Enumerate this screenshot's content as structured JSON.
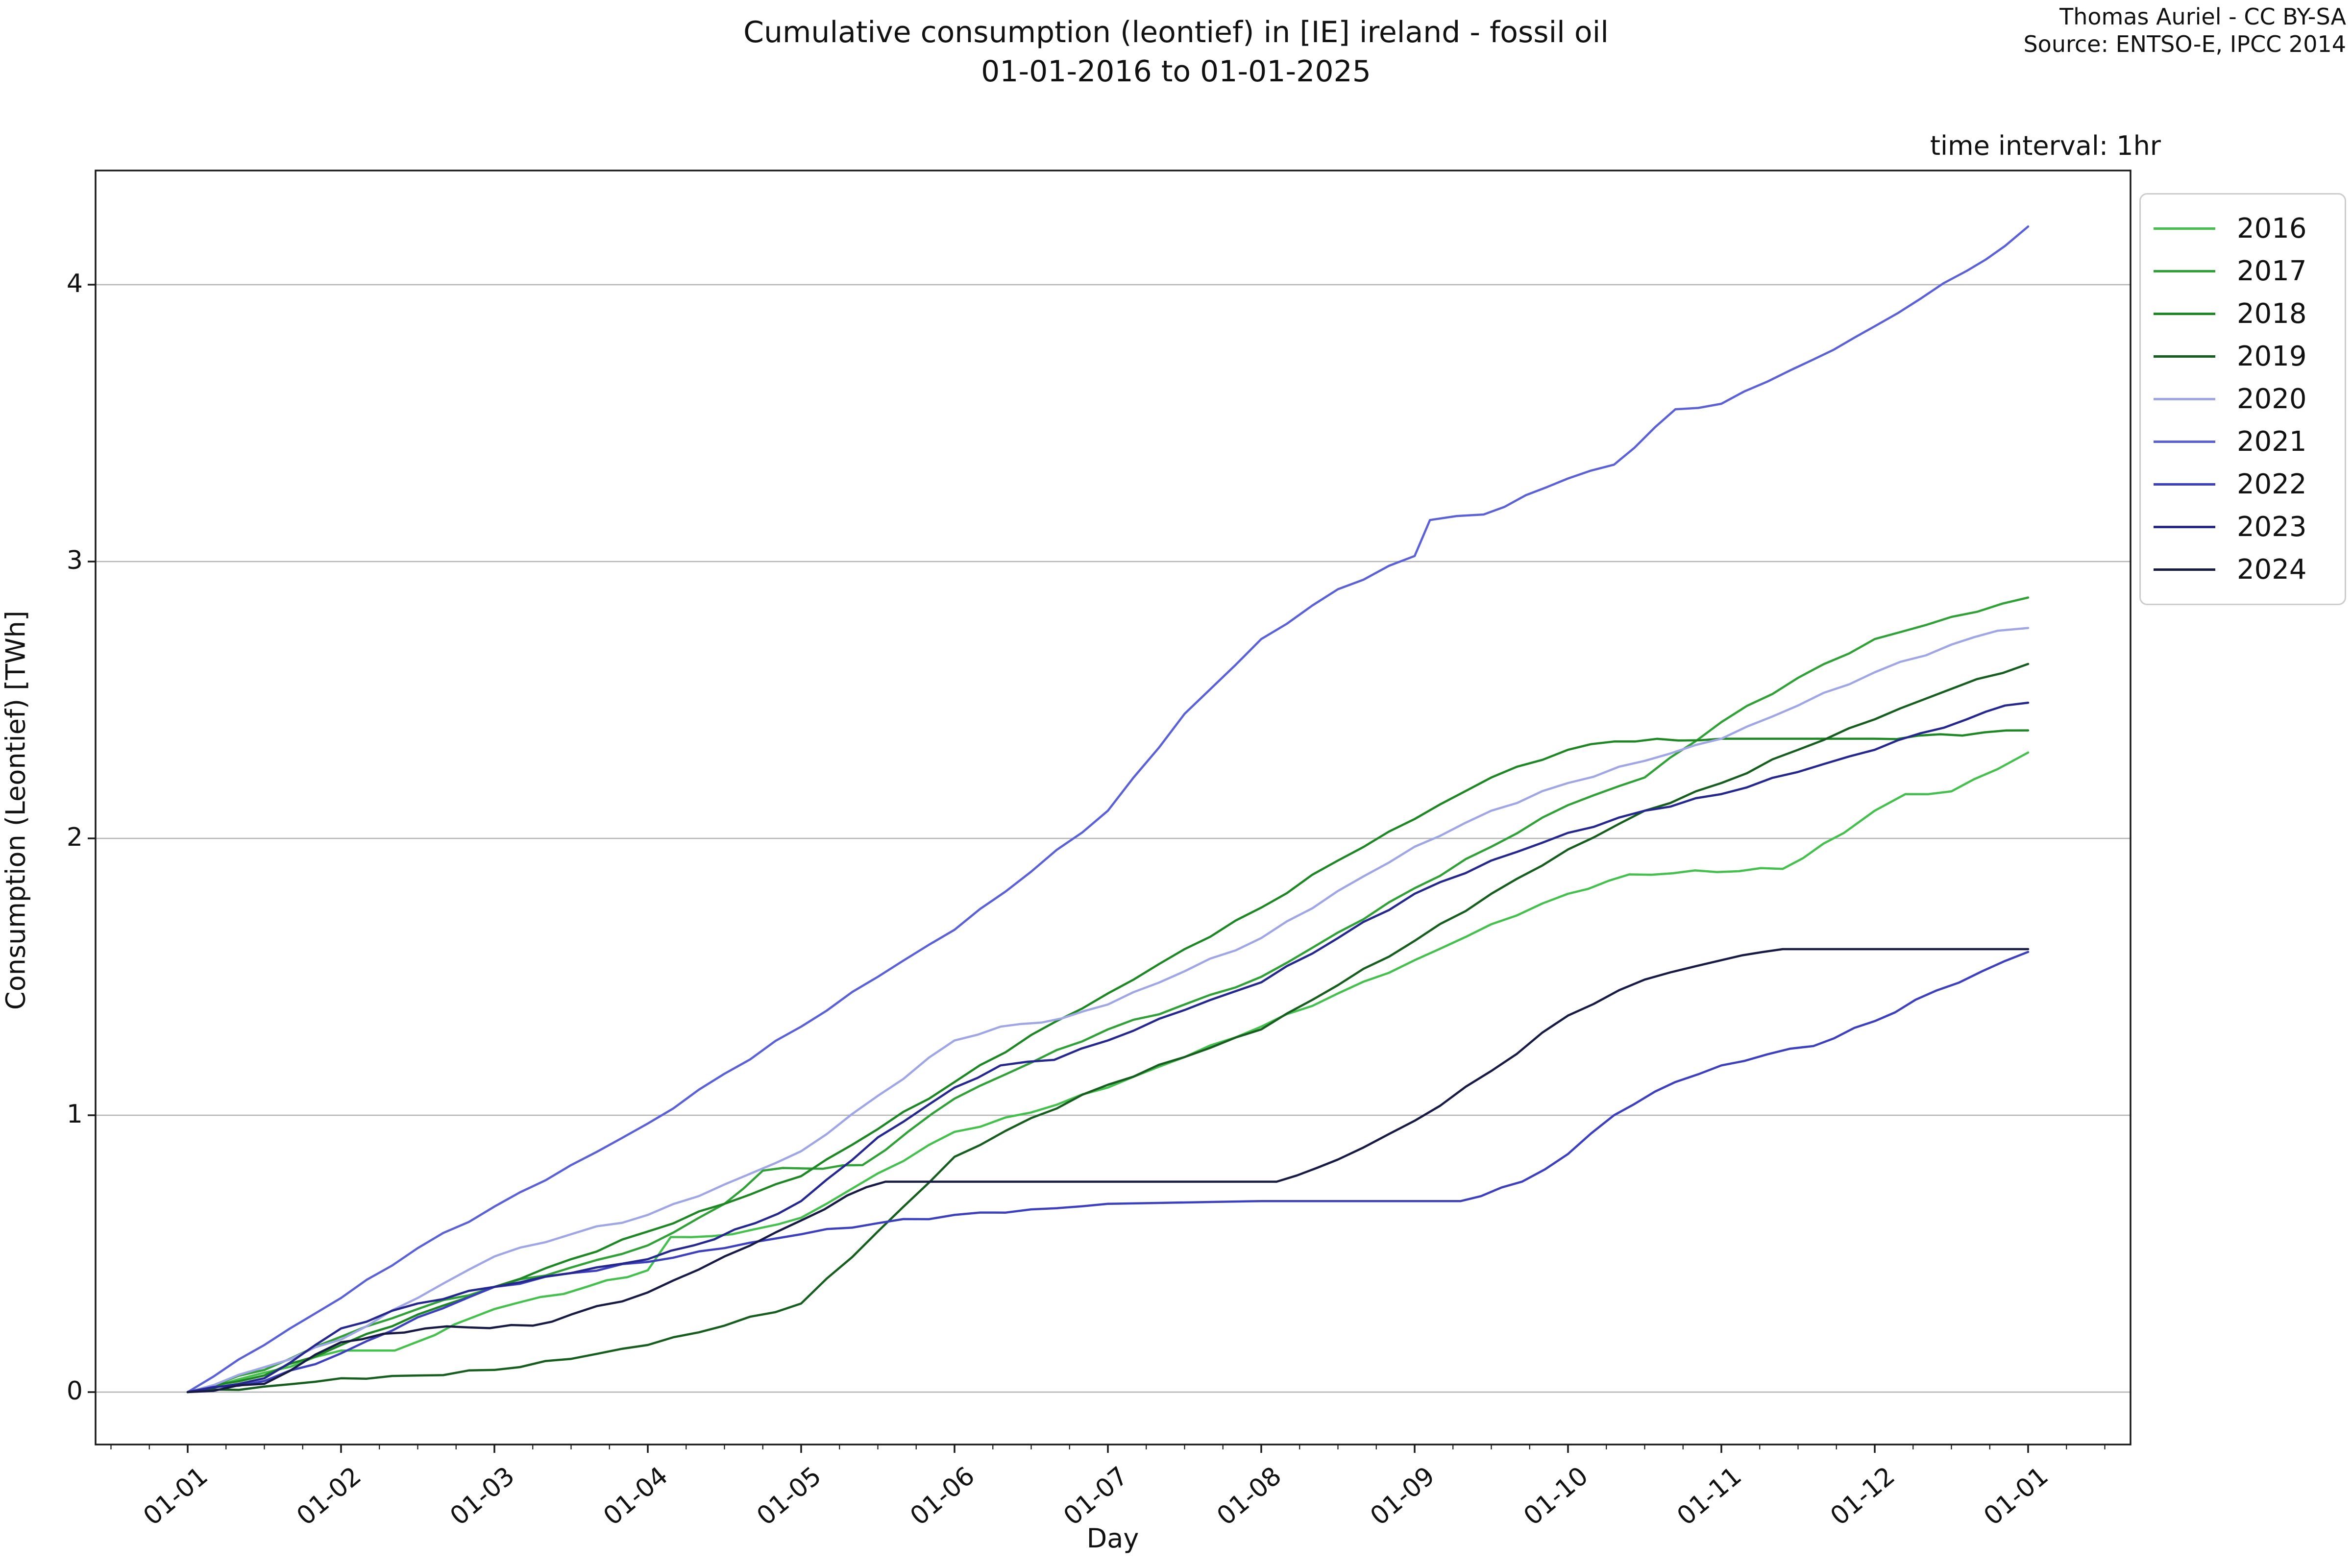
{
  "header": {
    "title_line1": "Cumulative consumption (leontief) in [IE] ireland - fossil oil",
    "title_line2": "01-01-2016 to 01-01-2025",
    "attribution_line1": "Thomas Auriel - CC BY-SA",
    "attribution_line2": "Source: ENTSO-E, IPCC 2014",
    "corner_note": "time interval: 1hr"
  },
  "chart_data": {
    "type": "line",
    "title": "Cumulative consumption (leontief) in [IE] ireland - fossil oil 01-01-2016 to 01-01-2025",
    "xlabel": "Day",
    "ylabel": "Consumption (Leontief) [TWh]",
    "x_tick_labels": [
      "01-01",
      "01-02",
      "01-03",
      "01-04",
      "01-05",
      "01-06",
      "01-07",
      "01-08",
      "01-09",
      "01-10",
      "01-11",
      "01-12",
      "01-01"
    ],
    "y_ticks": [
      0,
      1,
      2,
      3,
      4
    ],
    "xlim_months": [
      -0.6,
      12.67
    ],
    "ylim": [
      -0.19,
      4.44
    ],
    "grid": "horizontal gridlines at integer TWh",
    "legend_position": "outside upper right",
    "x_units": "month index from Jan 1 (0 = 01-01, 12 = next 01-01)",
    "series": [
      {
        "name": "2016",
        "color": "#44c04c",
        "points": [
          [
            0,
            0
          ],
          [
            0.5,
            0.07
          ],
          [
            1,
            0.15
          ],
          [
            1.35,
            0.15
          ],
          [
            2,
            0.3
          ],
          [
            2.6,
            0.38
          ],
          [
            3,
            0.44
          ],
          [
            3.15,
            0.56
          ],
          [
            3.55,
            0.57
          ],
          [
            4,
            0.63
          ],
          [
            4.5,
            0.79
          ],
          [
            5,
            0.94
          ],
          [
            5.5,
            1.01
          ],
          [
            6,
            1.1
          ],
          [
            6.5,
            1.21
          ],
          [
            7,
            1.32
          ],
          [
            7.5,
            1.44
          ],
          [
            8,
            1.56
          ],
          [
            8.5,
            1.69
          ],
          [
            9,
            1.8
          ],
          [
            9.4,
            1.87
          ],
          [
            10.4,
            1.89
          ],
          [
            10.8,
            2.02
          ],
          [
            11,
            2.1
          ],
          [
            11.2,
            2.16
          ],
          [
            11.5,
            2.17
          ],
          [
            11.8,
            2.25
          ],
          [
            12,
            2.31
          ]
        ]
      },
      {
        "name": "2017",
        "color": "#2fa136",
        "points": [
          [
            0,
            0
          ],
          [
            0.5,
            0.08
          ],
          [
            1,
            0.2
          ],
          [
            1.5,
            0.3
          ],
          [
            2,
            0.38
          ],
          [
            2.5,
            0.45
          ],
          [
            3,
            0.53
          ],
          [
            3.5,
            0.68
          ],
          [
            3.75,
            0.8
          ],
          [
            4.4,
            0.82
          ],
          [
            5,
            1.06
          ],
          [
            5.5,
            1.19
          ],
          [
            6,
            1.31
          ],
          [
            6.5,
            1.4
          ],
          [
            7,
            1.5
          ],
          [
            7.5,
            1.66
          ],
          [
            8,
            1.82
          ],
          [
            8.5,
            1.97
          ],
          [
            9,
            2.12
          ],
          [
            9.5,
            2.22
          ],
          [
            10,
            2.42
          ],
          [
            10.5,
            2.58
          ],
          [
            11,
            2.72
          ],
          [
            11.5,
            2.8
          ],
          [
            12,
            2.87
          ]
        ]
      },
      {
        "name": "2018",
        "color": "#1d8724",
        "points": [
          [
            0,
            0
          ],
          [
            0.5,
            0.06
          ],
          [
            1,
            0.17
          ],
          [
            1.5,
            0.28
          ],
          [
            2,
            0.38
          ],
          [
            2.5,
            0.48
          ],
          [
            3,
            0.58
          ],
          [
            3.5,
            0.68
          ],
          [
            4,
            0.78
          ],
          [
            4.5,
            0.95
          ],
          [
            5,
            1.12
          ],
          [
            5.5,
            1.29
          ],
          [
            6,
            1.44
          ],
          [
            6.5,
            1.6
          ],
          [
            7,
            1.75
          ],
          [
            7.5,
            1.92
          ],
          [
            8,
            2.07
          ],
          [
            8.5,
            2.22
          ],
          [
            9,
            2.32
          ],
          [
            9.3,
            2.35
          ],
          [
            10,
            2.36
          ],
          [
            11,
            2.36
          ],
          [
            12,
            2.39
          ]
        ]
      },
      {
        "name": "2019",
        "color": "#155e1d",
        "points": [
          [
            0,
            0
          ],
          [
            0.5,
            0.02
          ],
          [
            1,
            0.05
          ],
          [
            1.5,
            0.06
          ],
          [
            2,
            0.08
          ],
          [
            2.5,
            0.12
          ],
          [
            3,
            0.17
          ],
          [
            3.5,
            0.24
          ],
          [
            4,
            0.32
          ],
          [
            4.5,
            0.58
          ],
          [
            5,
            0.85
          ],
          [
            5.5,
            0.99
          ],
          [
            6,
            1.11
          ],
          [
            6.5,
            1.21
          ],
          [
            7,
            1.31
          ],
          [
            7.5,
            1.47
          ],
          [
            8,
            1.63
          ],
          [
            8.5,
            1.8
          ],
          [
            9,
            1.96
          ],
          [
            9.5,
            2.1
          ],
          [
            10,
            2.2
          ],
          [
            10.5,
            2.32
          ],
          [
            11,
            2.43
          ],
          [
            11.5,
            2.54
          ],
          [
            12,
            2.63
          ]
        ]
      },
      {
        "name": "2020",
        "color": "#9fa6e6",
        "points": [
          [
            0,
            0
          ],
          [
            0.5,
            0.09
          ],
          [
            1,
            0.19
          ],
          [
            1.5,
            0.34
          ],
          [
            2,
            0.49
          ],
          [
            2.5,
            0.57
          ],
          [
            3,
            0.64
          ],
          [
            3.5,
            0.75
          ],
          [
            4,
            0.87
          ],
          [
            4.5,
            1.07
          ],
          [
            5,
            1.27
          ],
          [
            5.3,
            1.32
          ],
          [
            5.7,
            1.35
          ],
          [
            6,
            1.4
          ],
          [
            6.5,
            1.52
          ],
          [
            7,
            1.64
          ],
          [
            7.5,
            1.81
          ],
          [
            8,
            1.97
          ],
          [
            8.5,
            2.1
          ],
          [
            9,
            2.2
          ],
          [
            9.5,
            2.28
          ],
          [
            10,
            2.36
          ],
          [
            10.5,
            2.48
          ],
          [
            11,
            2.6
          ],
          [
            11.5,
            2.7
          ],
          [
            11.8,
            2.75
          ],
          [
            12,
            2.76
          ]
        ]
      },
      {
        "name": "2021",
        "color": "#5a60d8",
        "points": [
          [
            0,
            0
          ],
          [
            0.5,
            0.17
          ],
          [
            1,
            0.34
          ],
          [
            1.5,
            0.52
          ],
          [
            2,
            0.67
          ],
          [
            2.5,
            0.82
          ],
          [
            3,
            0.97
          ],
          [
            3.5,
            1.15
          ],
          [
            4,
            1.32
          ],
          [
            4.5,
            1.5
          ],
          [
            5,
            1.67
          ],
          [
            5.5,
            1.88
          ],
          [
            6,
            2.1
          ],
          [
            6.5,
            2.45
          ],
          [
            7,
            2.72
          ],
          [
            7.5,
            2.9
          ],
          [
            8,
            3.02
          ],
          [
            8.1,
            3.15
          ],
          [
            8.45,
            3.17
          ],
          [
            9,
            3.3
          ],
          [
            9.3,
            3.35
          ],
          [
            9.7,
            3.55
          ],
          [
            10,
            3.57
          ],
          [
            10.3,
            3.65
          ],
          [
            10.6,
            3.73
          ],
          [
            11,
            3.85
          ],
          [
            11.3,
            3.95
          ],
          [
            11.6,
            4.05
          ],
          [
            11.85,
            4.14
          ],
          [
            12,
            4.21
          ]
        ]
      },
      {
        "name": "2022",
        "color": "#3b3fc0",
        "points": [
          [
            0,
            0
          ],
          [
            0.5,
            0.04
          ],
          [
            1,
            0.14
          ],
          [
            1.5,
            0.27
          ],
          [
            2,
            0.38
          ],
          [
            2.5,
            0.43
          ],
          [
            3,
            0.47
          ],
          [
            3.5,
            0.52
          ],
          [
            4,
            0.57
          ],
          [
            4.5,
            0.61
          ],
          [
            5,
            0.64
          ],
          [
            5.5,
            0.66
          ],
          [
            6,
            0.68
          ],
          [
            7,
            0.69
          ],
          [
            8.3,
            0.69
          ],
          [
            8.7,
            0.76
          ],
          [
            9,
            0.86
          ],
          [
            9.3,
            1.0
          ],
          [
            9.7,
            1.12
          ],
          [
            10,
            1.18
          ],
          [
            10.3,
            1.22
          ],
          [
            10.6,
            1.25
          ],
          [
            11,
            1.34
          ],
          [
            11.4,
            1.45
          ],
          [
            11.7,
            1.52
          ],
          [
            12,
            1.59
          ]
        ]
      },
      {
        "name": "2023",
        "color": "#24278f",
        "points": [
          [
            0,
            0
          ],
          [
            0.5,
            0.05
          ],
          [
            1,
            0.23
          ],
          [
            1.5,
            0.32
          ],
          [
            2,
            0.38
          ],
          [
            2.5,
            0.43
          ],
          [
            3,
            0.48
          ],
          [
            3.3,
            0.53
          ],
          [
            3.7,
            0.61
          ],
          [
            4,
            0.69
          ],
          [
            4.5,
            0.92
          ],
          [
            5,
            1.1
          ],
          [
            5.3,
            1.18
          ],
          [
            5.65,
            1.2
          ],
          [
            6,
            1.27
          ],
          [
            6.5,
            1.38
          ],
          [
            7,
            1.48
          ],
          [
            7.5,
            1.64
          ],
          [
            8,
            1.8
          ],
          [
            8.5,
            1.92
          ],
          [
            9,
            2.02
          ],
          [
            9.5,
            2.1
          ],
          [
            10,
            2.16
          ],
          [
            10.5,
            2.24
          ],
          [
            11,
            2.32
          ],
          [
            11.3,
            2.38
          ],
          [
            11.6,
            2.43
          ],
          [
            11.85,
            2.48
          ],
          [
            12,
            2.49
          ]
        ]
      },
      {
        "name": "2024",
        "color": "#161a45",
        "points": [
          [
            0,
            0
          ],
          [
            0.5,
            0.03
          ],
          [
            1,
            0.18
          ],
          [
            1.55,
            0.23
          ],
          [
            2.25,
            0.24
          ],
          [
            2.5,
            0.28
          ],
          [
            3,
            0.36
          ],
          [
            3.5,
            0.49
          ],
          [
            4,
            0.62
          ],
          [
            4.3,
            0.71
          ],
          [
            4.55,
            0.76
          ],
          [
            6,
            0.76
          ],
          [
            7.1,
            0.76
          ],
          [
            7.5,
            0.84
          ],
          [
            8,
            0.98
          ],
          [
            8.5,
            1.16
          ],
          [
            9,
            1.36
          ],
          [
            9.5,
            1.49
          ],
          [
            10,
            1.56
          ],
          [
            10.4,
            1.6
          ],
          [
            11,
            1.6
          ],
          [
            11.5,
            1.6
          ],
          [
            12,
            1.6
          ]
        ]
      }
    ]
  }
}
